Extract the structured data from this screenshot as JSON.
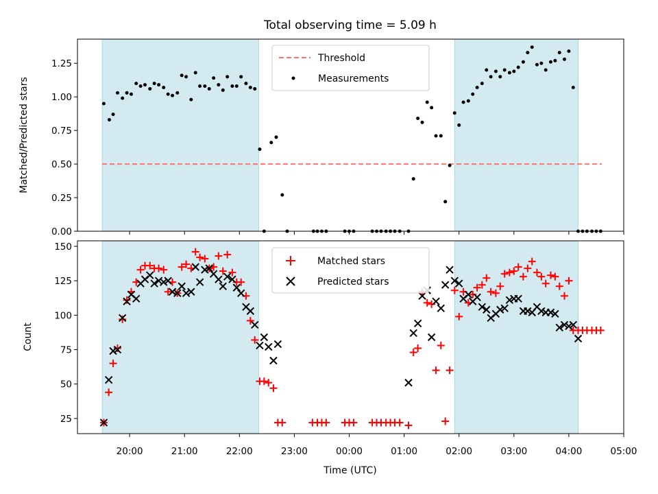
{
  "chart_data": [
    {
      "type": "scatter",
      "title": "Total observing time = 5.09 h",
      "xlabel": "",
      "ylabel": "Matched/Predicted stars",
      "x_unit": "hours since 00:00 UTC (negative = previous evening)",
      "xlim": [
        -4.95,
        5.0
      ],
      "ylim": [
        0.0,
        1.43
      ],
      "yticks": [
        "0.00",
        "0.25",
        "0.50",
        "0.75",
        "1.00",
        "1.25"
      ],
      "ytick_values": [
        0.0,
        0.25,
        0.5,
        0.75,
        1.0,
        1.25
      ],
      "shaded_intervals": [
        [
          -4.5,
          -1.65
        ],
        [
          1.92,
          4.17
        ]
      ],
      "shade_color": "#d4eaf1",
      "threshold": {
        "name": "Threshold",
        "value": 0.5,
        "x_range": [
          -4.5,
          4.6
        ],
        "color": "#ff7070"
      },
      "legend": {
        "position": "top-center",
        "entries": [
          "Threshold",
          "Measurements"
        ]
      },
      "series": [
        {
          "name": "Measurements",
          "color": "#000000",
          "x": [
            -4.47,
            -4.37,
            -4.3,
            -4.22,
            -4.13,
            -4.05,
            -3.97,
            -3.88,
            -3.8,
            -3.72,
            -3.63,
            -3.55,
            -3.47,
            -3.38,
            -3.3,
            -3.22,
            -3.13,
            -3.05,
            -2.97,
            -2.88,
            -2.8,
            -2.72,
            -2.63,
            -2.55,
            -2.47,
            -2.38,
            -2.3,
            -2.22,
            -2.13,
            -2.05,
            -1.97,
            -1.88,
            -1.8,
            -1.72,
            -1.63,
            -1.55,
            -1.42,
            -1.33,
            -1.22,
            -1.13,
            -0.65,
            -0.58,
            -0.5,
            -0.42,
            -0.08,
            0.0,
            0.08,
            0.42,
            0.5,
            0.58,
            0.67,
            0.75,
            0.83,
            0.92,
            1.08,
            1.17,
            1.25,
            1.33,
            1.42,
            1.5,
            1.58,
            1.67,
            1.75,
            1.83,
            1.92,
            2.0,
            2.08,
            2.17,
            2.25,
            2.33,
            2.42,
            2.5,
            2.58,
            2.67,
            2.75,
            2.83,
            2.92,
            3.0,
            3.08,
            3.17,
            3.25,
            3.33,
            3.42,
            3.5,
            3.58,
            3.67,
            3.75,
            3.83,
            3.92,
            4.0,
            4.08,
            4.17,
            4.25,
            4.33,
            4.42,
            4.5,
            4.58
          ],
          "y": [
            0.95,
            0.83,
            0.87,
            1.03,
            0.99,
            1.03,
            1.02,
            1.1,
            1.08,
            1.09,
            1.06,
            1.1,
            1.09,
            1.07,
            1.02,
            1.01,
            1.03,
            1.16,
            1.15,
            0.98,
            1.18,
            1.08,
            1.08,
            1.06,
            1.14,
            1.09,
            1.05,
            1.15,
            1.08,
            1.08,
            1.15,
            1.1,
            1.07,
            1.06,
            0.61,
            0.0,
            0.66,
            0.7,
            0.27,
            0.0,
            0.0,
            0.0,
            0.0,
            0.0,
            0.0,
            0.0,
            0.0,
            0.0,
            0.0,
            0.0,
            0.0,
            0.0,
            0.0,
            0.0,
            0.0,
            0.39,
            0.84,
            0.81,
            0.96,
            0.92,
            0.71,
            0.71,
            0.22,
            0.49,
            0.88,
            0.79,
            0.96,
            0.97,
            1.02,
            1.07,
            1.1,
            1.2,
            1.15,
            1.19,
            1.15,
            1.2,
            1.18,
            1.19,
            1.22,
            1.26,
            1.33,
            1.37,
            1.24,
            1.25,
            1.2,
            1.26,
            1.27,
            1.33,
            1.28,
            1.34,
            1.07,
            0.0,
            0.0,
            0.0,
            0.0,
            0.0,
            0.0
          ]
        }
      ]
    },
    {
      "type": "scatter",
      "title": "",
      "xlabel": "Time (UTC)",
      "ylabel": "Count",
      "x_unit": "hours since 00:00 UTC (negative = previous evening)",
      "xlim": [
        -4.95,
        5.0
      ],
      "ylim": [
        14,
        154
      ],
      "yticks": [
        "25",
        "50",
        "75",
        "100",
        "125",
        "150"
      ],
      "ytick_values": [
        25,
        50,
        75,
        100,
        125,
        150
      ],
      "xticks": [
        "20:00",
        "21:00",
        "22:00",
        "23:00",
        "00:00",
        "01:00",
        "02:00",
        "03:00",
        "04:00",
        "05:00"
      ],
      "xtick_values": [
        -4,
        -3,
        -2,
        -1,
        0,
        1,
        2,
        3,
        4,
        5
      ],
      "shaded_intervals": [
        [
          -4.5,
          -1.65
        ],
        [
          1.92,
          4.17
        ]
      ],
      "shade_color": "#d4eaf1",
      "legend": {
        "position": "top-center",
        "entries": [
          "Matched stars",
          "Predicted stars"
        ]
      },
      "series": [
        {
          "name": "Matched stars",
          "color": "#ff0000",
          "marker": "plus",
          "x": [
            -4.47,
            -4.38,
            -4.3,
            -4.22,
            -4.13,
            -4.05,
            -3.97,
            -3.88,
            -3.8,
            -3.72,
            -3.63,
            -3.55,
            -3.47,
            -3.38,
            -3.3,
            -3.22,
            -3.13,
            -3.05,
            -2.97,
            -2.88,
            -2.8,
            -2.72,
            -2.63,
            -2.55,
            -2.47,
            -2.38,
            -2.3,
            -2.22,
            -2.13,
            -2.05,
            -1.97,
            -1.88,
            -1.8,
            -1.72,
            -1.63,
            -1.55,
            -1.47,
            -1.38,
            -1.3,
            -1.22,
            -0.67,
            -0.58,
            -0.5,
            -0.42,
            -0.08,
            0.0,
            0.08,
            0.42,
            0.5,
            0.58,
            0.67,
            0.75,
            0.83,
            0.92,
            1.08,
            1.17,
            1.25,
            1.33,
            1.42,
            1.5,
            1.58,
            1.67,
            1.75,
            1.83,
            1.92,
            2.0,
            2.08,
            2.17,
            2.25,
            2.33,
            2.42,
            2.5,
            2.58,
            2.67,
            2.75,
            2.83,
            2.92,
            3.0,
            3.08,
            3.17,
            3.25,
            3.33,
            3.42,
            3.5,
            3.58,
            3.67,
            3.75,
            3.83,
            3.92,
            4.0,
            4.08,
            4.17,
            4.25,
            4.33,
            4.42,
            4.5,
            4.58
          ],
          "y": [
            22,
            44,
            65,
            76,
            97,
            111,
            117,
            124,
            133,
            136,
            136,
            134,
            134,
            133,
            117,
            124,
            116,
            135,
            137,
            134,
            146,
            142,
            141,
            134,
            135,
            143,
            132,
            144,
            131,
            124,
            124,
            114,
            96,
            82,
            52,
            52,
            51,
            47,
            22,
            22,
            22,
            22,
            22,
            22,
            22,
            22,
            22,
            22,
            22,
            22,
            22,
            22,
            22,
            22,
            20,
            73,
            76,
            117,
            109,
            108,
            60,
            78,
            23,
            60,
            118,
            99,
            117,
            109,
            115,
            120,
            122,
            127,
            117,
            116,
            121,
            130,
            131,
            132,
            135,
            128,
            134,
            139,
            131,
            128,
            123,
            129,
            128,
            121,
            114,
            125,
            89,
            89,
            89,
            89,
            89,
            89,
            89
          ]
        },
        {
          "name": "Predicted stars",
          "color": "#000000",
          "marker": "x",
          "x": [
            -4.47,
            -4.38,
            -4.3,
            -4.22,
            -4.13,
            -4.05,
            -3.97,
            -3.88,
            -3.8,
            -3.72,
            -3.63,
            -3.55,
            -3.47,
            -3.38,
            -3.3,
            -3.22,
            -3.13,
            -3.05,
            -2.97,
            -2.88,
            -2.8,
            -2.72,
            -2.63,
            -2.55,
            -2.47,
            -2.38,
            -2.3,
            -2.22,
            -2.13,
            -2.05,
            -1.97,
            -1.88,
            -1.8,
            -1.72,
            -1.63,
            -1.55,
            -1.47,
            -1.38,
            -1.3,
            1.08,
            1.17,
            1.25,
            1.33,
            1.42,
            1.5,
            1.58,
            1.67,
            1.75,
            1.83,
            1.92,
            2.0,
            2.08,
            2.17,
            2.25,
            2.33,
            2.42,
            2.5,
            2.58,
            2.67,
            2.75,
            2.83,
            2.92,
            3.0,
            3.08,
            3.17,
            3.25,
            3.33,
            3.42,
            3.5,
            3.58,
            3.67,
            3.75,
            3.83,
            3.92,
            4.0,
            4.08,
            4.17
          ],
          "y": [
            22,
            53,
            74,
            75,
            98,
            110,
            115,
            112,
            123,
            126,
            129,
            123,
            125,
            124,
            125,
            117,
            116,
            121,
            116,
            117,
            135,
            124,
            133,
            134,
            130,
            126,
            121,
            128,
            126,
            120,
            116,
            106,
            103,
            93,
            78,
            84,
            77,
            67,
            79,
            51,
            87,
            94,
            114,
            118,
            84,
            110,
            105,
            122,
            133,
            125,
            123,
            112,
            115,
            110,
            113,
            106,
            104,
            98,
            101,
            104,
            105,
            111,
            112,
            112,
            103,
            103,
            102,
            106,
            103,
            102,
            102,
            101,
            91,
            93,
            92,
            93,
            83
          ]
        }
      ]
    }
  ]
}
